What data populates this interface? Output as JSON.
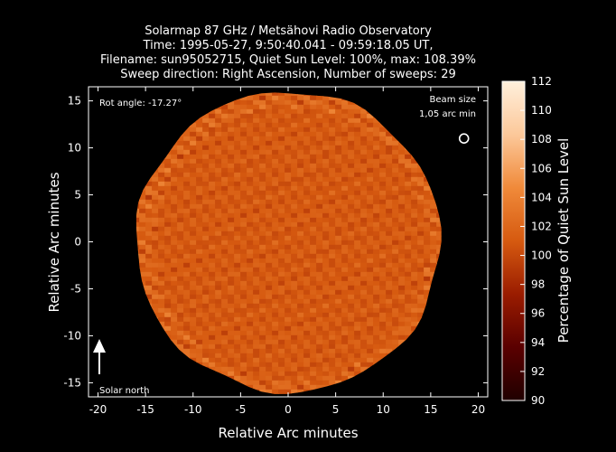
{
  "chart_data": {
    "type": "heatmap",
    "title_lines": [
      "Solarmap 87 GHz / Metsähovi Radio Observatory",
      "Time: 1995-05-27,  9:50:40.041 - 09:59:18.05 UT,",
      "Filename: sun95052715, Quiet Sun Level: 100%, max: 108.39%",
      "Sweep direction: Right Ascension, Number of sweeps: 29"
    ],
    "xlabel": "Relative Arc minutes",
    "ylabel": "Relative Arc minutes",
    "xlim": [
      -21,
      21
    ],
    "ylim": [
      -16.5,
      16.5
    ],
    "xticks": [
      -20,
      -15,
      -10,
      -5,
      0,
      5,
      10,
      15,
      20
    ],
    "yticks": [
      -15,
      -10,
      -5,
      0,
      5,
      10,
      15
    ],
    "colorbar": {
      "label": "Percentage of Quiet Sun Level",
      "min": 90,
      "max": 112,
      "ticks": [
        90,
        92,
        94,
        96,
        98,
        100,
        102,
        104,
        106,
        108,
        110,
        112
      ],
      "colors": [
        "#200000",
        "#5a0000",
        "#9a1c00",
        "#d65a10",
        "#f08a3a",
        "#fcc89a",
        "#fff0dc"
      ]
    },
    "disk": {
      "center_x": 0,
      "center_y": 0,
      "radius_arcmin": 16,
      "typical_level": 101
    },
    "annotations": {
      "rot_angle": "Rot angle: -17.27°",
      "beam_size_label": "Beam size",
      "beam_size_value": "1,05 arc min",
      "beam_center": [
        18.5,
        11
      ],
      "solar_north": "Solar north"
    }
  }
}
